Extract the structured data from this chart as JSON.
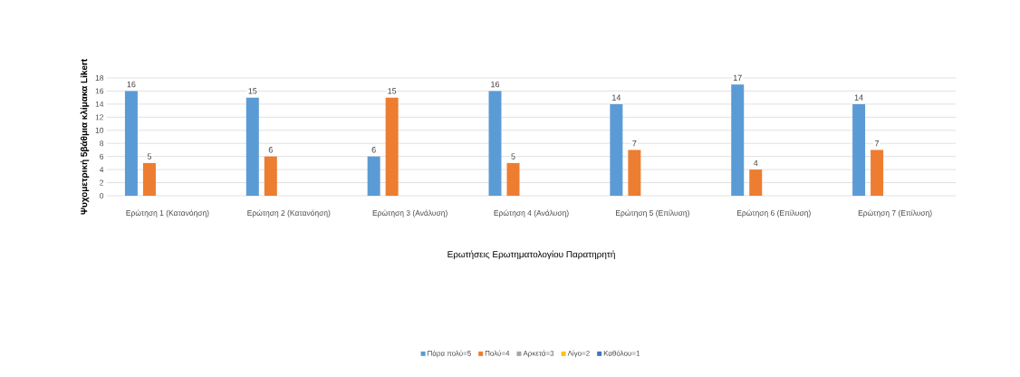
{
  "chart_data": {
    "type": "bar",
    "xlabel": "Ερωτήσεις Ερωτηματολογίου Παρατηρητή",
    "ylabel": "Ψυχομετρική 5βάθμια κλίμακα Likert",
    "categories": [
      "Ερώτηση 1 (Κατανόηση)",
      "Ερώτηση 2 (Κατανόηση)",
      "Ερώτηση 3 (Ανάλυση)",
      "Ερώτηση 4 (Ανάλυση)",
      "Ερώτηση 5 (Επίλυση)",
      "Ερώτηση 6 (Επίλυση)",
      "Ερώτηση 7 (Επίλυση)"
    ],
    "series": [
      {
        "name": "Πάρα πολύ=5",
        "color": "#5b9bd5",
        "values": [
          16,
          15,
          6,
          16,
          14,
          17,
          14
        ]
      },
      {
        "name": "Πολύ=4",
        "color": "#ed7d31",
        "values": [
          5,
          6,
          15,
          5,
          7,
          4,
          7
        ]
      },
      {
        "name": "Αρκετά=3",
        "color": "#a5a5a5",
        "values": [
          null,
          null,
          null,
          null,
          null,
          null,
          null
        ]
      },
      {
        "name": "Λίγο=2",
        "color": "#ffc000",
        "values": [
          null,
          null,
          null,
          null,
          null,
          null,
          null
        ]
      },
      {
        "name": "Καθόλου=1",
        "color": "#4472c4",
        "values": [
          null,
          null,
          null,
          null,
          null,
          null,
          null
        ]
      }
    ],
    "ylim": [
      0,
      18
    ],
    "yticks": [
      0,
      2,
      4,
      6,
      8,
      10,
      12,
      14,
      16,
      18
    ],
    "grid": "y",
    "legend": "bottom",
    "data_labels": true
  }
}
